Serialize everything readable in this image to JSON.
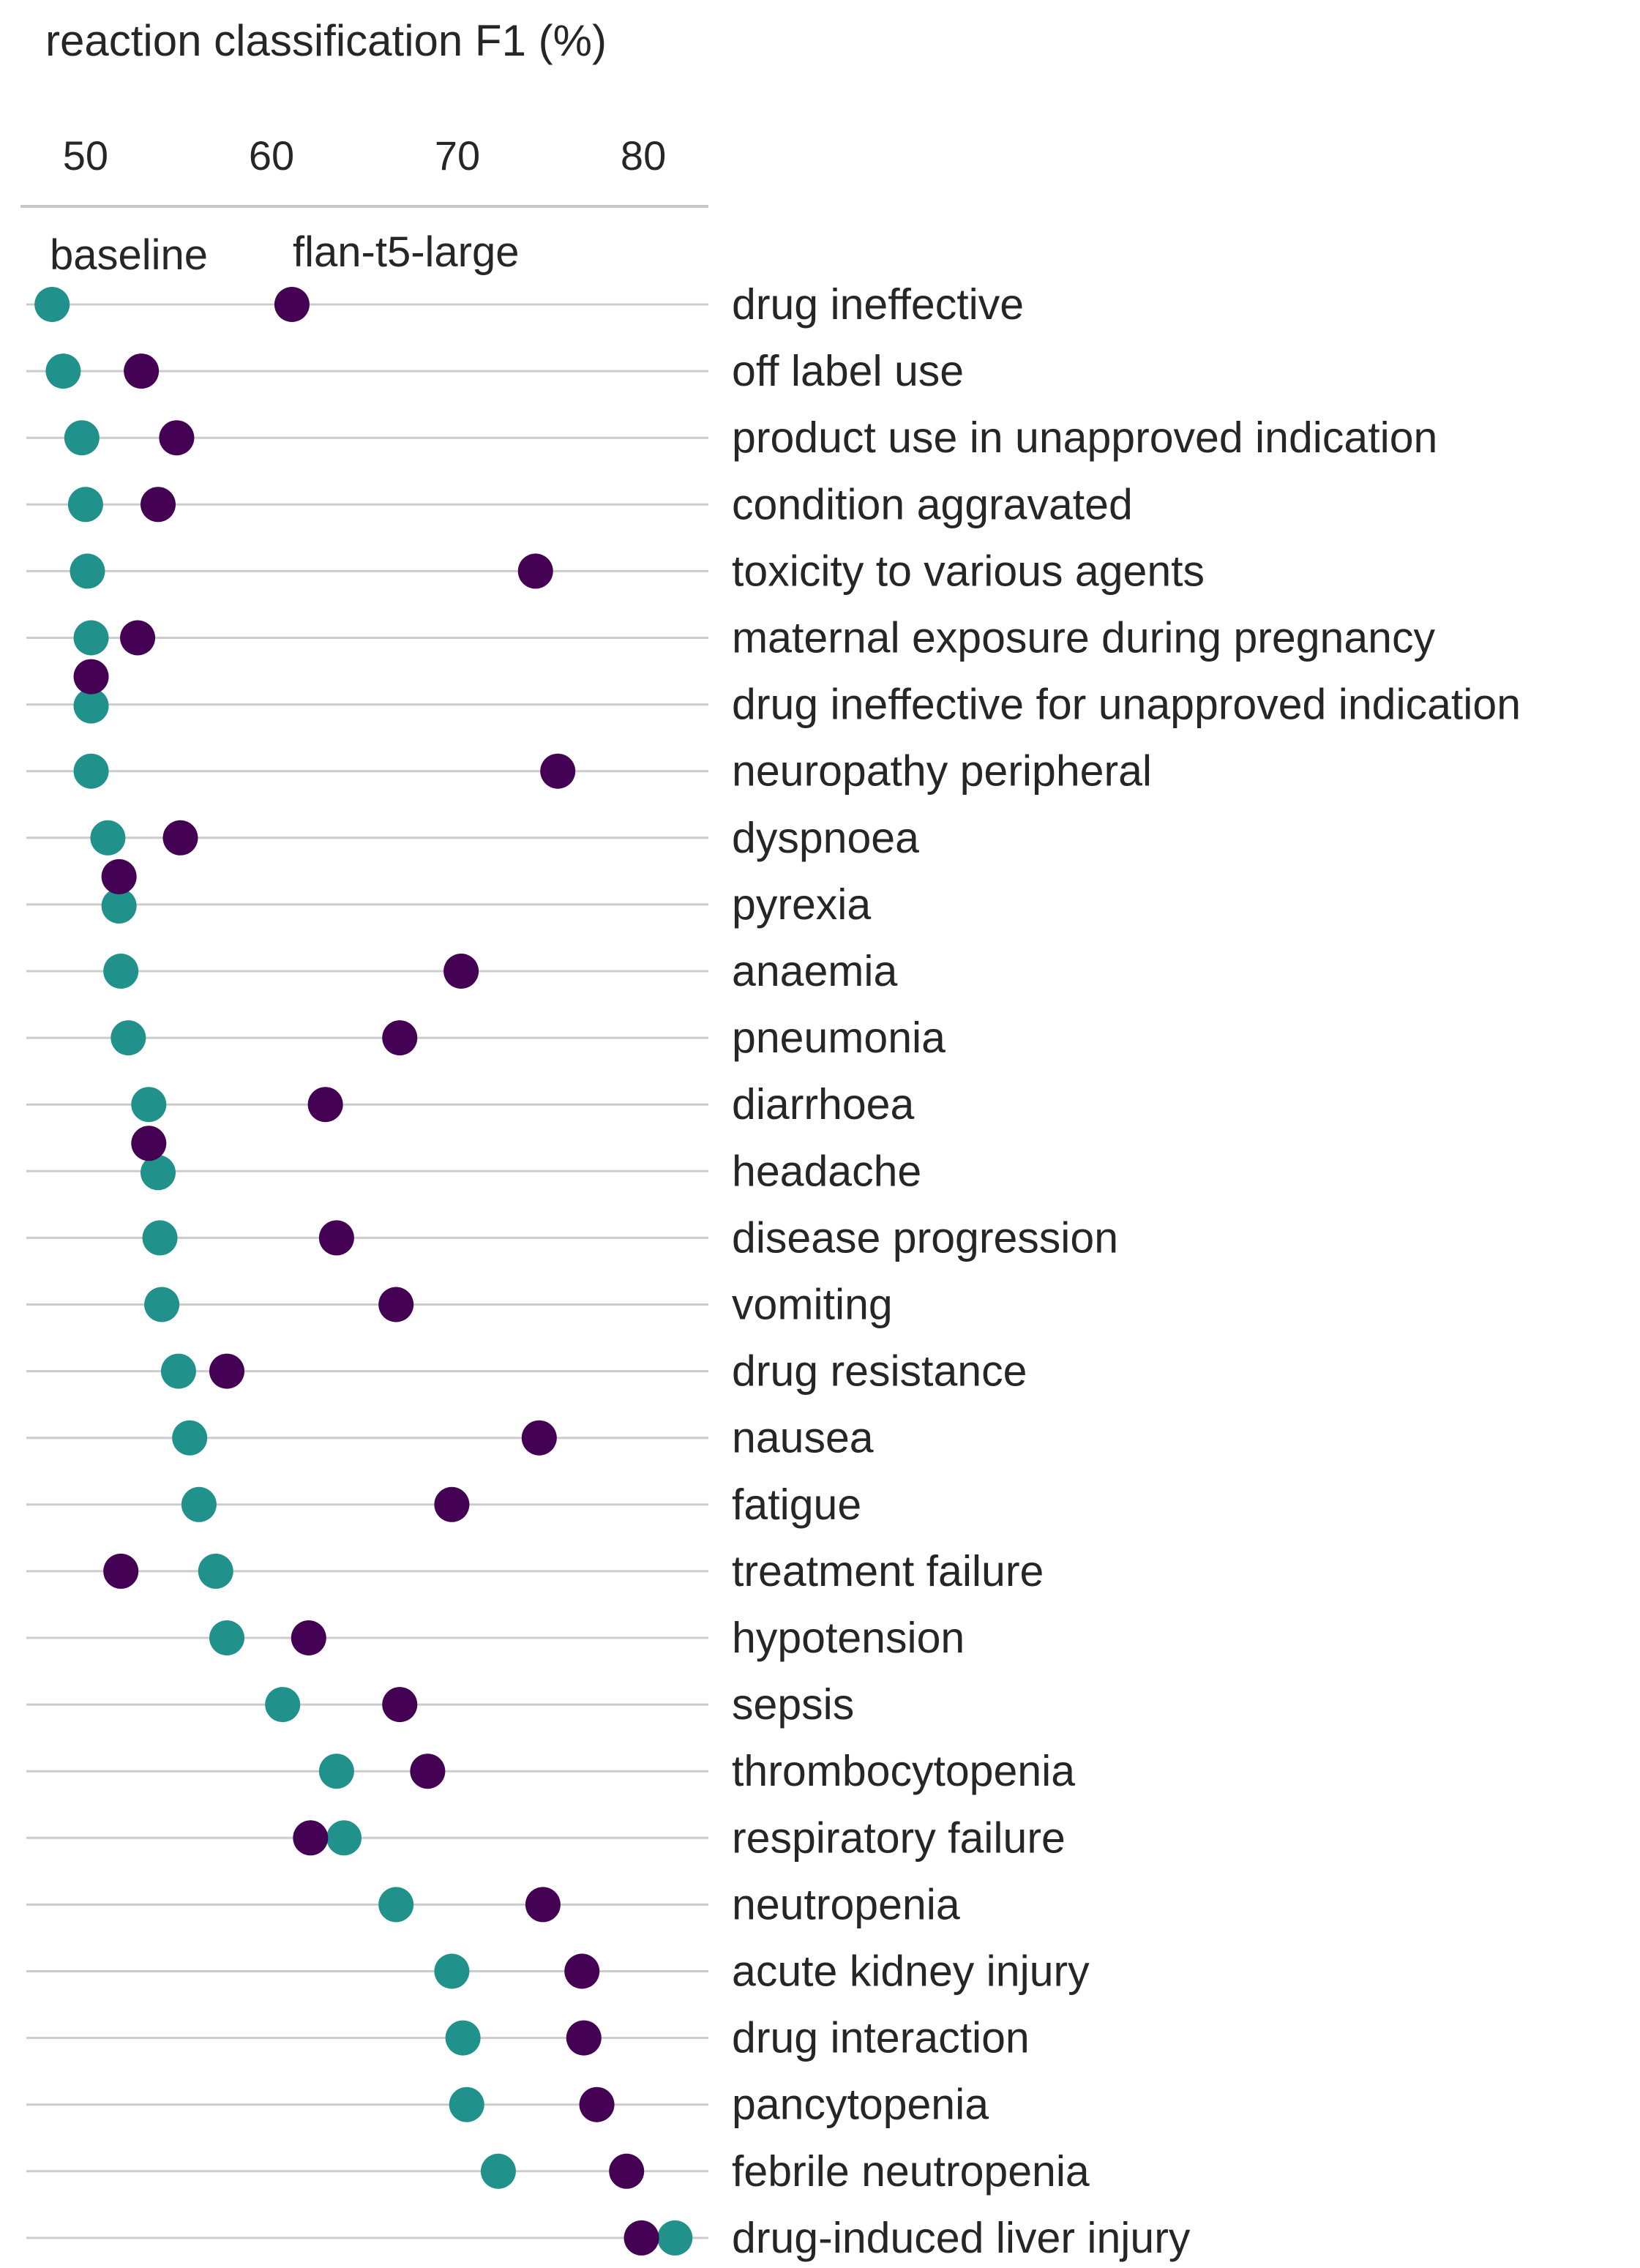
{
  "chart_data": {
    "type": "scatter",
    "subtype": "dot-plot",
    "title": "reaction classification F1 (%)",
    "xlabel": "reaction classification F1 (%)",
    "xlim": [
      46.5,
      83.5
    ],
    "xticks": [
      50,
      60,
      70,
      80
    ],
    "x_axis_position": "top",
    "grid": "horizontal row lines",
    "legend_placement": "top-left, inline labels",
    "colors": {
      "baseline": "#21918c",
      "flan-t5-large": "#440154"
    },
    "series": [
      {
        "name": "baseline",
        "color": "#21918c",
        "values": [
          48.2,
          48.8,
          49.8,
          50.0,
          50.1,
          50.3,
          50.3,
          50.3,
          51.2,
          51.8,
          51.9,
          52.3,
          53.4,
          53.9,
          54.0,
          54.1,
          55.0,
          55.6,
          56.1,
          57.0,
          57.6,
          60.6,
          63.5,
          63.9,
          66.7,
          69.7,
          70.3,
          70.5,
          72.2,
          81.7
        ]
      },
      {
        "name": "flan-t5-large",
        "color": "#440154",
        "values": [
          61.1,
          53.0,
          54.9,
          53.9,
          74.2,
          52.8,
          50.3,
          75.4,
          55.1,
          51.8,
          70.2,
          66.9,
          62.9,
          53.4,
          63.5,
          66.7,
          57.6,
          74.4,
          69.7,
          51.9,
          62.0,
          66.9,
          68.4,
          62.1,
          74.6,
          76.7,
          76.8,
          77.5,
          79.1,
          79.9
        ]
      }
    ],
    "categories": [
      "drug ineffective",
      "off label use",
      "product use in unapproved indication",
      "condition aggravated",
      "toxicity to various agents",
      "maternal exposure during pregnancy",
      "drug ineffective for unapproved indication",
      "neuropathy peripheral",
      "dyspnoea",
      "pyrexia",
      "anaemia",
      "pneumonia",
      "diarrhoea",
      "headache",
      "disease progression",
      "vomiting",
      "drug resistance",
      "nausea",
      "fatigue",
      "treatment failure",
      "hypotension",
      "sepsis",
      "thrombocytopenia",
      "respiratory failure",
      "neutropenia",
      "acute kidney injury",
      "drug interaction",
      "pancytopenia",
      "febrile neutropenia",
      "drug-induced liver injury"
    ]
  }
}
